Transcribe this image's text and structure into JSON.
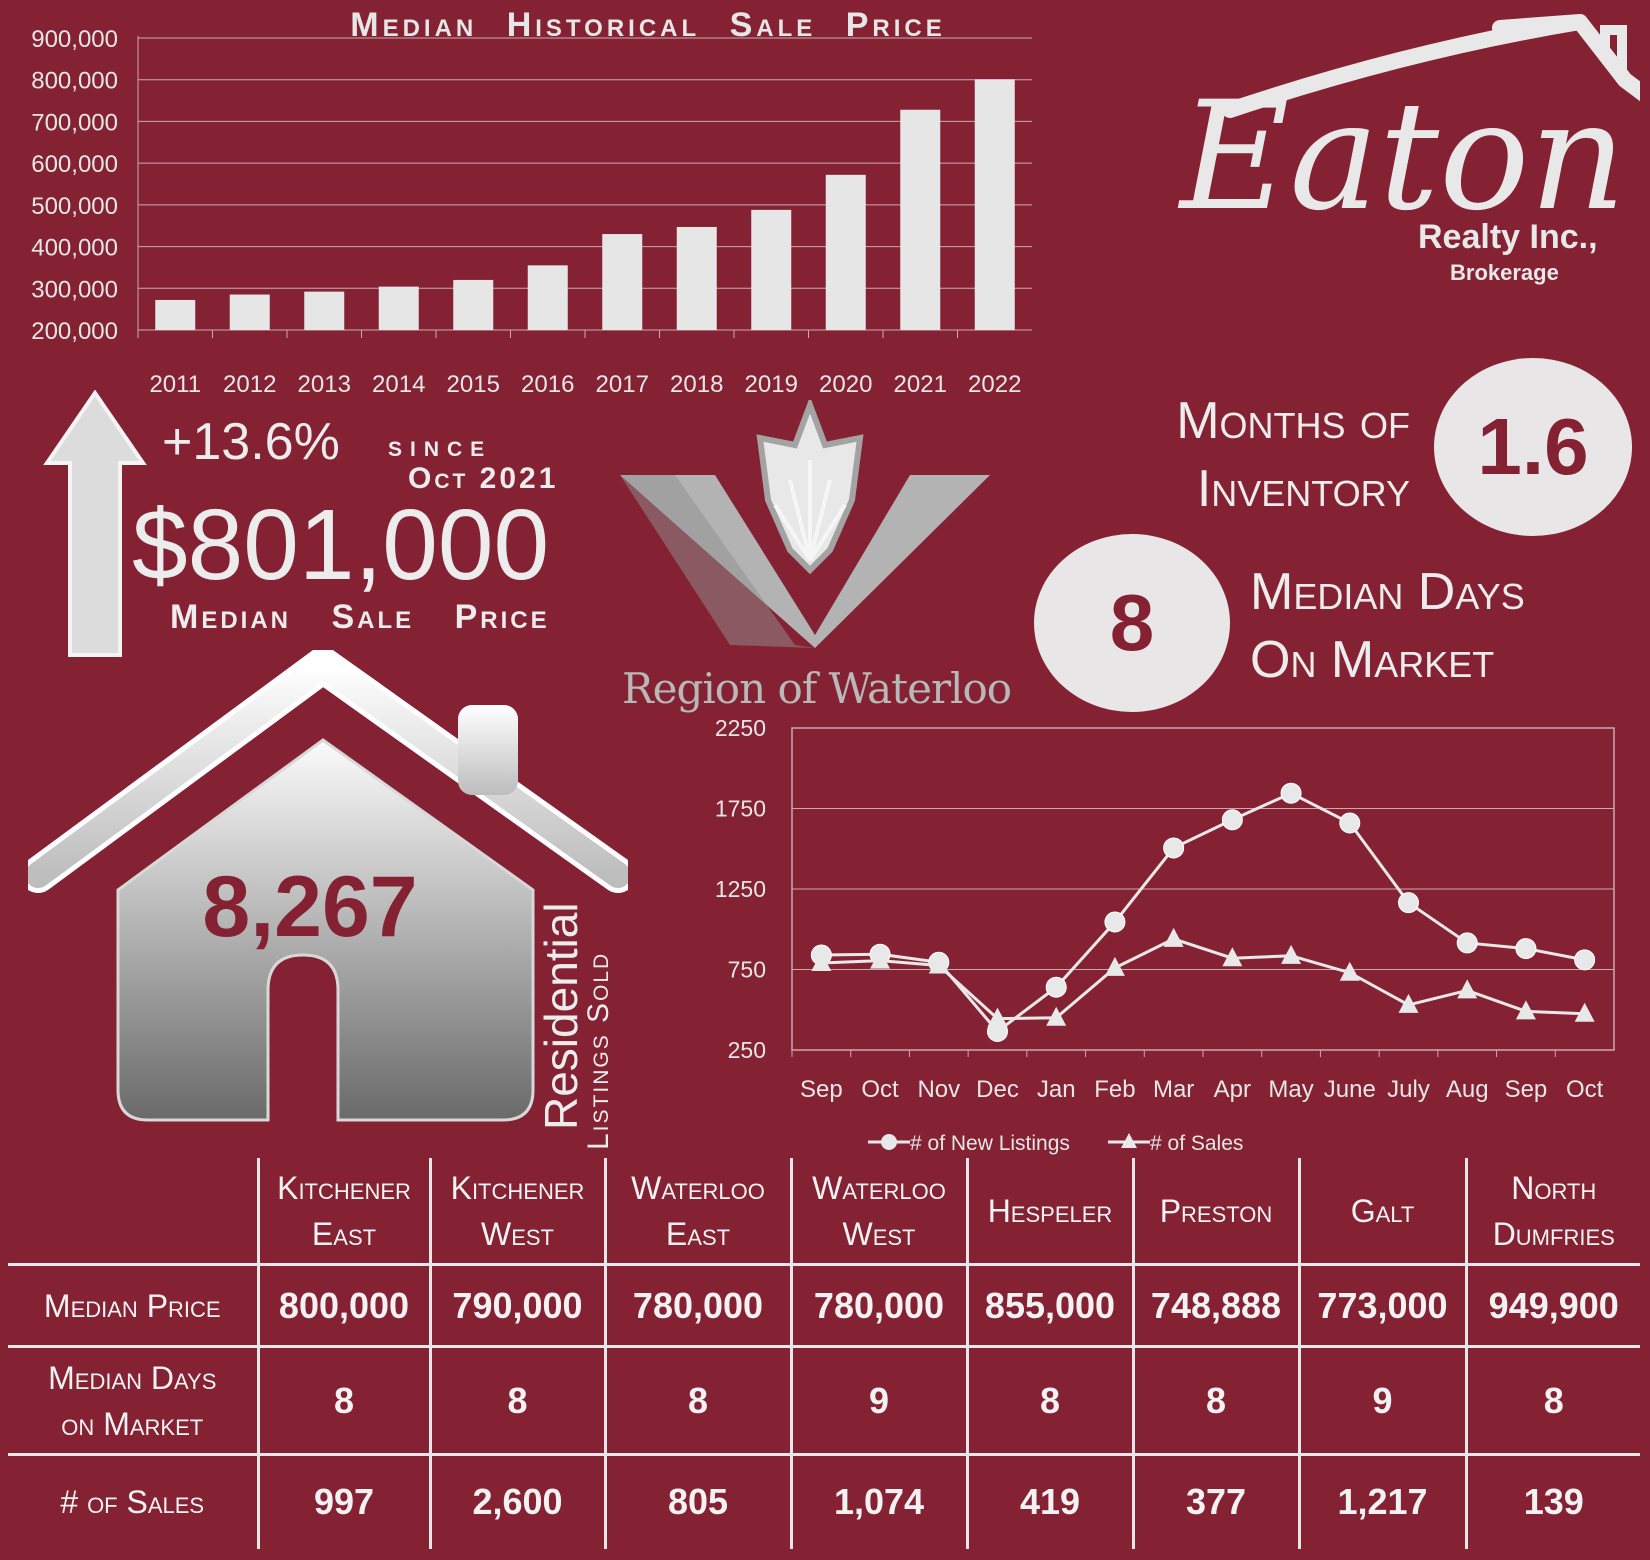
{
  "colors": {
    "background": "#842233",
    "light": "#e9e6e7",
    "bar": "#e6e6e6"
  },
  "headline": {
    "change_pct": "+13.6%",
    "since_label": "since",
    "since_date": "Oct 2021",
    "median_price": "$801,000",
    "median_price_label": "Median Sale Price"
  },
  "brand": {
    "logo_text": "Eaton",
    "company": "Realty Inc.,",
    "subtitle": "Brokerage"
  },
  "region": {
    "name": "Region of Waterloo"
  },
  "inventory": {
    "label_line1": "Months of",
    "label_line2": "Inventory",
    "value": "1.6"
  },
  "days_on_market": {
    "value": "8",
    "label_line1": "Median Days",
    "label_line2": "On Market"
  },
  "listings_sold": {
    "value": "8,267",
    "label_line1": "Residential",
    "label_line2": "Listings Sold"
  },
  "chart_data": [
    {
      "type": "bar",
      "title": "Median Historical Sale Price",
      "categories": [
        "2011",
        "2012",
        "2013",
        "2014",
        "2015",
        "2016",
        "2017",
        "2018",
        "2019",
        "2020",
        "2021",
        "2022"
      ],
      "values": [
        272000,
        285000,
        292000,
        304000,
        320000,
        355000,
        430000,
        447000,
        488000,
        572000,
        728000,
        801000
      ],
      "ylim": [
        200000,
        900000
      ],
      "yticks": [
        "200,000",
        "300,000",
        "400,000",
        "500,000",
        "600,000",
        "700,000",
        "800,000",
        "900,000"
      ],
      "grid": true
    },
    {
      "type": "line",
      "categories": [
        "Sep",
        "Oct",
        "Nov",
        "Dec",
        "Jan",
        "Feb",
        "Mar",
        "Apr",
        "May",
        "June",
        "July",
        "Aug",
        "Sep",
        "Oct"
      ],
      "series": [
        {
          "name": "# of New Listings",
          "marker": "circle",
          "values": [
            840,
            845,
            795,
            365,
            640,
            1045,
            1505,
            1680,
            1845,
            1660,
            1165,
            915,
            880,
            810
          ]
        },
        {
          "name": "# of Sales",
          "marker": "triangle",
          "values": [
            790,
            805,
            775,
            445,
            450,
            760,
            940,
            820,
            835,
            730,
            530,
            620,
            490,
            475
          ]
        }
      ],
      "ylim": [
        250,
        2250
      ],
      "yticks": [
        "250",
        "750",
        "1250",
        "1750",
        "2250"
      ],
      "legend": "bottom",
      "grid": true
    }
  ],
  "table": {
    "columns": [
      [
        "Kitchener",
        "East"
      ],
      [
        "Kitchener",
        "West"
      ],
      [
        "Waterloo",
        "East"
      ],
      [
        "Waterloo",
        "West"
      ],
      [
        "Hespeler",
        ""
      ],
      [
        "Preston",
        ""
      ],
      [
        "Galt",
        ""
      ],
      [
        "North",
        "Dumfries"
      ]
    ],
    "rows": [
      {
        "label": [
          "Median Price",
          ""
        ],
        "values": [
          "800,000",
          "790,000",
          "780,000",
          "780,000",
          "855,000",
          "748,888",
          "773,000",
          "949,900"
        ]
      },
      {
        "label": [
          "Median Days",
          "on Market"
        ],
        "values": [
          "8",
          "8",
          "8",
          "9",
          "8",
          "8",
          "9",
          "8"
        ]
      },
      {
        "label": [
          "# of Sales",
          ""
        ],
        "values": [
          "997",
          "2,600",
          "805",
          "1,074",
          "419",
          "377",
          "1,217",
          "139"
        ]
      }
    ]
  }
}
